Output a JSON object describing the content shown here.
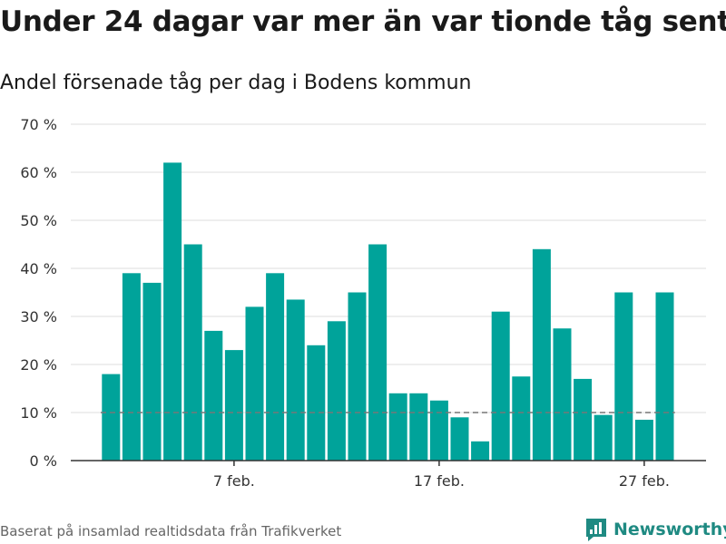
{
  "header": {
    "title": "Under 24 dagar var mer än var tionde tåg sent",
    "subtitle": "Andel försenade tåg per dag i Bodens kommun"
  },
  "footer": {
    "source": "Baserat på insamlad realtidsdata från Trafikverket",
    "brand": "Newsworthy"
  },
  "colors": {
    "bar": "#00a39a",
    "grid": "#dddddd",
    "reference": "#777777",
    "brand": "#1f8a82"
  },
  "chart_data": {
    "type": "bar",
    "title": "Under 24 dagar var mer än var tionde tåg sent",
    "subtitle": "Andel försenade tåg per dag i Bodens kommun",
    "xlabel": "",
    "ylabel": "",
    "ylim": [
      0,
      70
    ],
    "y_ticks": [
      0,
      10,
      20,
      30,
      40,
      50,
      60,
      70
    ],
    "y_tick_labels": [
      "0 %",
      "10 %",
      "20 %",
      "30 %",
      "40 %",
      "50 %",
      "60 %",
      "70 %"
    ],
    "x_ticks": [
      {
        "index": 6,
        "label": "7 feb."
      },
      {
        "index": 16,
        "label": "17 feb."
      },
      {
        "index": 26,
        "label": "27 feb."
      }
    ],
    "categories": [
      "1 feb.",
      "2 feb.",
      "3 feb.",
      "4 feb.",
      "5 feb.",
      "6 feb.",
      "7 feb.",
      "8 feb.",
      "9 feb.",
      "10 feb.",
      "11 feb.",
      "12 feb.",
      "13 feb.",
      "14 feb.",
      "15 feb.",
      "16 feb.",
      "17 feb.",
      "18 feb.",
      "19 feb.",
      "20 feb.",
      "21 feb.",
      "22 feb.",
      "23 feb.",
      "24 feb.",
      "25 feb.",
      "26 feb.",
      "27 feb.",
      "28 feb."
    ],
    "values": [
      18,
      39,
      37,
      62,
      45,
      27,
      23,
      32,
      39,
      33.5,
      24,
      29,
      35,
      45,
      14,
      14,
      12.5,
      9,
      4,
      31,
      17.5,
      44,
      27.5,
      17,
      9.5,
      35,
      8.5,
      35
    ],
    "reference_line": 10,
    "grid": true,
    "legend": "none"
  }
}
